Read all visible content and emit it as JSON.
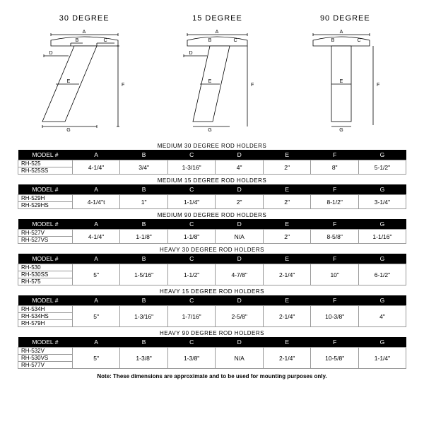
{
  "diagrams": {
    "d1": {
      "title": "30 DEGREE"
    },
    "d2": {
      "title": "15 DEGREE"
    },
    "d3": {
      "title": "90 DEGREE"
    }
  },
  "dim_labels": {
    "a": "A",
    "b": "B",
    "c": "C",
    "d": "D",
    "e": "E",
    "f": "F",
    "g": "G"
  },
  "sections": [
    {
      "title": "MEDIUM 30 DEGREE ROD HOLDERS",
      "headers": [
        "MODEL #",
        "A",
        "B",
        "C",
        "D",
        "E",
        "F",
        "G"
      ],
      "models": [
        "RH-525",
        "RH-525SS"
      ],
      "values": [
        "4-1/4\"",
        "3/4\"",
        "1-3/16\"",
        "4\"",
        "2\"",
        "8\"",
        "5-1/2\""
      ]
    },
    {
      "title": "MEDIUM 15 DEGREE ROD HOLDERS",
      "headers": [
        "MODEL #",
        "A",
        "B",
        "C",
        "D",
        "E",
        "F",
        "G"
      ],
      "models": [
        "RH-529H",
        "RH-529HS"
      ],
      "values": [
        "4-1/4\"t",
        "1\"",
        "1-1/4\"",
        "2\"",
        "2\"",
        "8-1/2\"",
        "3-1/4\""
      ]
    },
    {
      "title": "MEDIUM 90 DEGREE ROD HOLDERS",
      "headers": [
        "MODEL #",
        "A",
        "B",
        "C",
        "D",
        "E",
        "F",
        "G"
      ],
      "models": [
        "RH-527V",
        "RH-527VS"
      ],
      "values": [
        "4-1/4\"",
        "1-1/8\"",
        "1-1/8\"",
        "N/A",
        "2\"",
        "8-5/8\"",
        "1-1/16\""
      ]
    },
    {
      "title": "HEAVY 30 DEGREE ROD HOLDERS",
      "headers": [
        "MODEL #",
        "A",
        "B",
        "C",
        "D",
        "E",
        "F",
        "G"
      ],
      "models": [
        "RH-530",
        "RH-530SS",
        "RH-575"
      ],
      "values": [
        "5\"",
        "1-5/16\"",
        "1-1/2\"",
        "4-7/8\"",
        "2-1/4\"",
        "10\"",
        "6-1/2\""
      ]
    },
    {
      "title": "HEAVY 15 DEGREE ROD HOLDERS",
      "headers": [
        "MODEL #",
        "A",
        "B",
        "C",
        "D",
        "E",
        "F",
        "G"
      ],
      "models": [
        "RH-534H",
        "RH-534HS",
        "RH-579H"
      ],
      "values": [
        "5\"",
        "1-3/16\"",
        "1-7/16\"",
        "2-5/8\"",
        "2-1/4\"",
        "10-3/8\"",
        "4\""
      ]
    },
    {
      "title": "HEAVY 90 DEGREE ROD HOLDERS",
      "headers": [
        "MODEL #",
        "A",
        "B",
        "C",
        "D",
        "E",
        "F",
        "G"
      ],
      "models": [
        "RH-532V",
        "RH-530VS",
        "RH-577V"
      ],
      "values": [
        "5\"",
        "1-3/8\"",
        "1-3/8\"",
        "N/A",
        "2-1/4\"",
        "10-5/8\"",
        "1-1/4\""
      ]
    }
  ],
  "note": "Note: These dimensions are approximate and to be used for mounting purposes only.",
  "style": {
    "stroke": "#000",
    "stroke_width": 0.8,
    "font": "8px Arial",
    "bg": "#ffffff"
  }
}
